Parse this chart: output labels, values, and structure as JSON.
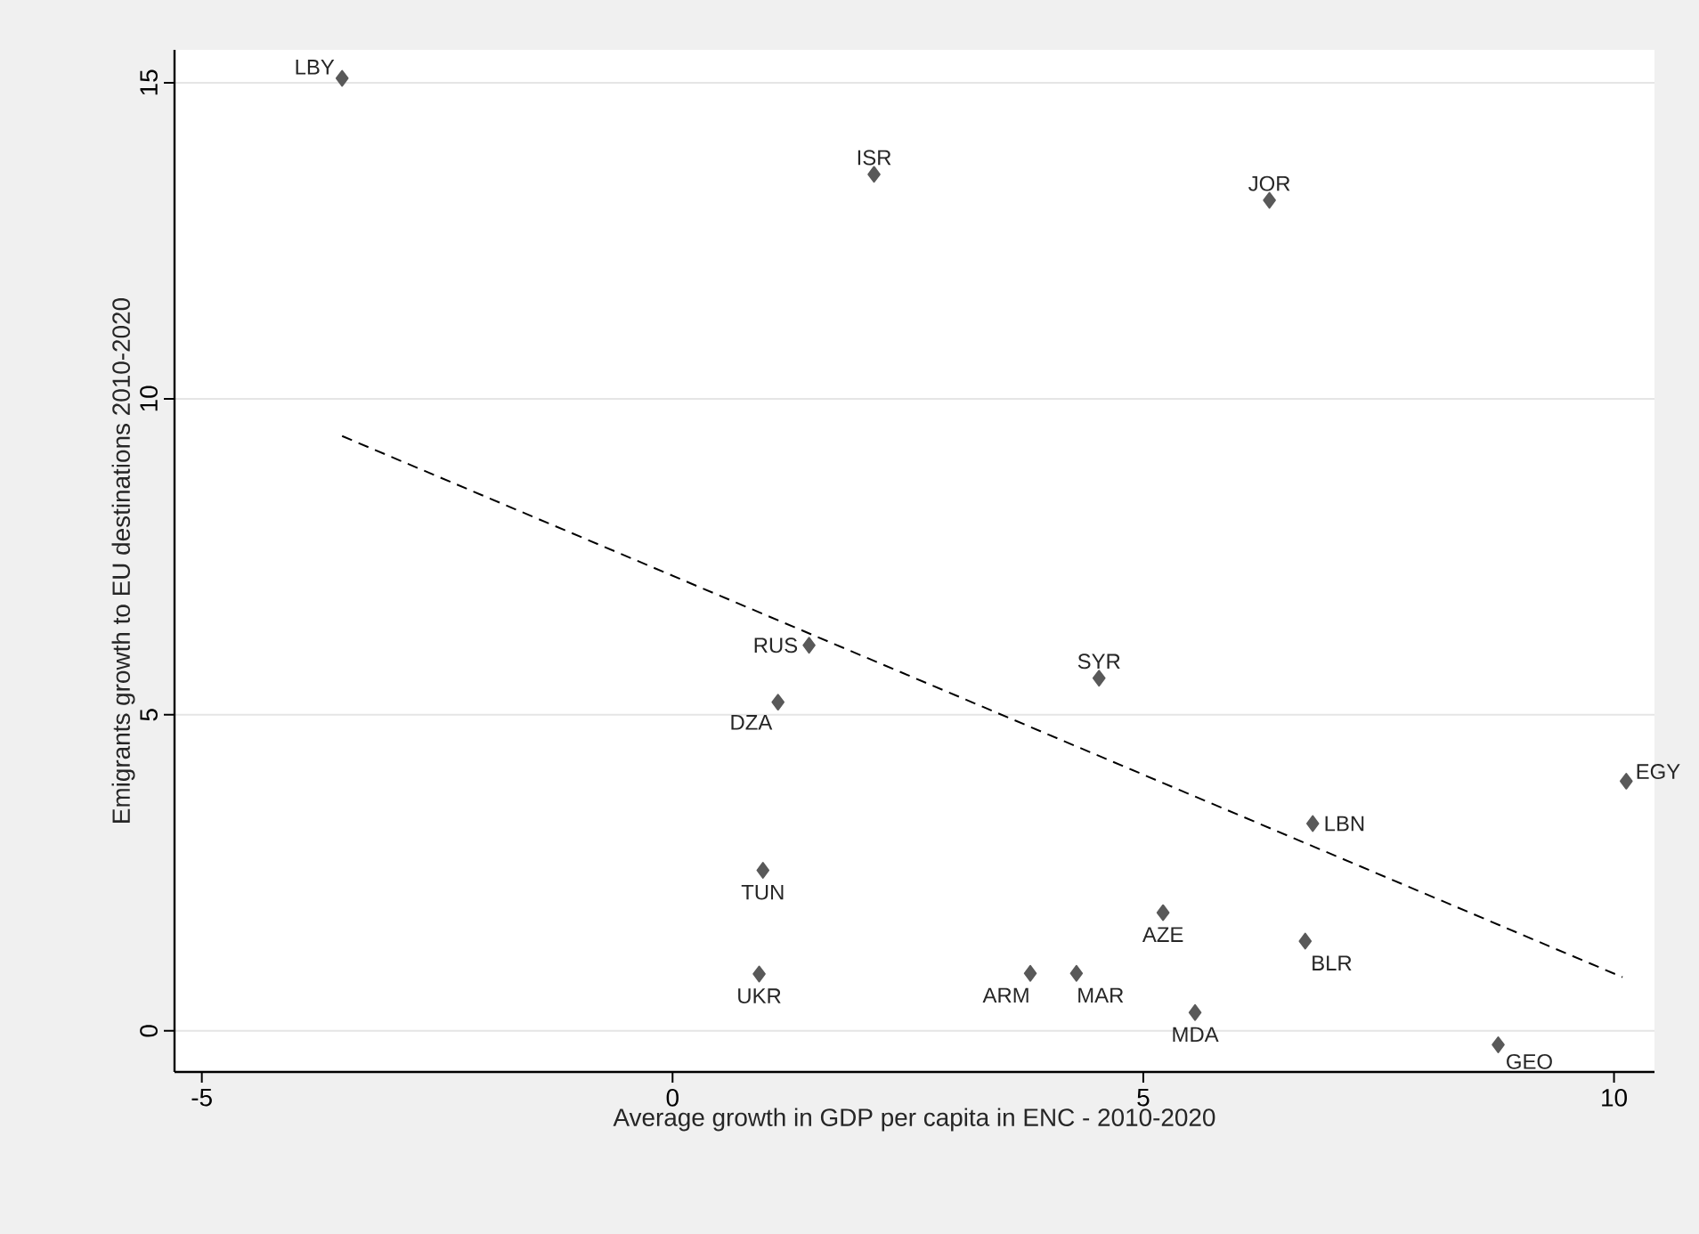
{
  "chart_data": {
    "type": "scatter",
    "xlabel": "Average growth in GDP per capita in ENC - 2010-2020",
    "ylabel": "Emigrants growth to EU destinations 2010-2020",
    "xlim": [
      -5.29,
      10.43
    ],
    "ylim": [
      -0.65,
      15.52
    ],
    "xticks": [
      -5,
      0,
      5,
      10
    ],
    "yticks": [
      0,
      5,
      10,
      15
    ],
    "grid": "y",
    "marker": "diamond",
    "series": [
      {
        "color": "#595959",
        "x": [
          -3.51,
          2.14,
          6.34,
          1.45,
          1.12,
          4.53,
          10.13,
          6.8,
          0.96,
          0.92,
          5.21,
          6.72,
          3.8,
          4.29,
          5.55,
          8.77
        ],
        "values": [
          15.07,
          13.55,
          13.14,
          6.1,
          5.2,
          5.58,
          3.95,
          3.28,
          2.54,
          0.9,
          1.87,
          1.42,
          0.91,
          0.91,
          0.29,
          -0.22
        ]
      },
      {
        "type": "line",
        "color": "#000000",
        "line_style": "dashed",
        "marker": "none",
        "x": [
          -3.51,
          10.09
        ],
        "values": [
          9.41,
          0.85
        ]
      }
    ],
    "annotations": [
      {
        "text": "LBY",
        "x": -3.51,
        "y": 15.07
      },
      {
        "text": "ISR",
        "x": 2.14,
        "y": 13.55
      },
      {
        "text": "JOR",
        "x": 6.34,
        "y": 13.14
      },
      {
        "text": "RUS",
        "x": 1.45,
        "y": 6.1
      },
      {
        "text": "DZA",
        "x": 1.12,
        "y": 5.2
      },
      {
        "text": "SYR",
        "x": 4.53,
        "y": 5.58
      },
      {
        "text": "EGY",
        "x": 10.13,
        "y": 3.95
      },
      {
        "text": "LBN",
        "x": 6.8,
        "y": 3.28
      },
      {
        "text": "TUN",
        "x": 0.96,
        "y": 2.54
      },
      {
        "text": "UKR",
        "x": 0.92,
        "y": 0.9
      },
      {
        "text": "AZE",
        "x": 5.21,
        "y": 1.87
      },
      {
        "text": "BLR",
        "x": 6.72,
        "y": 1.42
      },
      {
        "text": "ARM",
        "x": 3.8,
        "y": 0.91
      },
      {
        "text": "MAR",
        "x": 4.29,
        "y": 0.91
      },
      {
        "text": "MDA",
        "x": 5.55,
        "y": 0.29
      },
      {
        "text": "GEO",
        "x": 8.77,
        "y": -0.22
      }
    ]
  }
}
